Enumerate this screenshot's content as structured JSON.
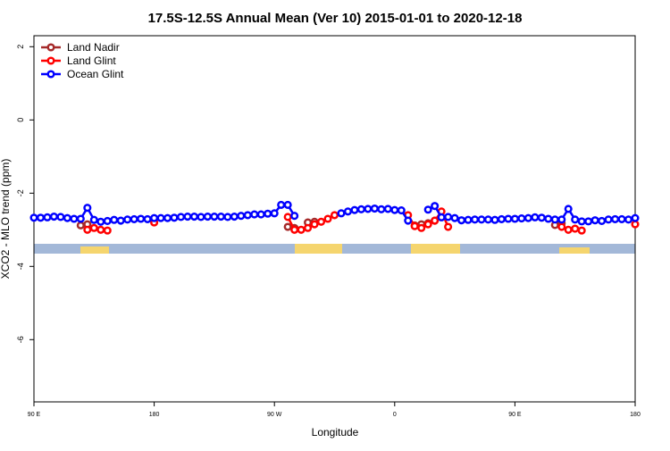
{
  "chart_data": {
    "type": "line",
    "title": "17.5S-12.5S Annual Mean (Ver 10)   2015-01-01 to 2020-12-18",
    "xlabel": "Longitude",
    "ylabel": "XCO2 - MLO trend (ppm)",
    "xlim": [
      90,
      540
    ],
    "ylim": [
      -7.7,
      2.3
    ],
    "xticks": [
      {
        "value": 90,
        "label": "90 E"
      },
      180,
      {
        "value": 270,
        "label": "90 W"
      },
      {
        "value": 360,
        "label": "0"
      },
      {
        "value": 450,
        "label": "90 E"
      },
      {
        "value": 540,
        "label": "180"
      }
    ],
    "yticks": [
      2,
      0,
      -2,
      -4,
      -6
    ],
    "legend": "top-left",
    "x": [
      90,
      95,
      100,
      105,
      110,
      115,
      120,
      125,
      130,
      135,
      140,
      145,
      150,
      155,
      160,
      165,
      170,
      175,
      180,
      185,
      190,
      195,
      200,
      205,
      210,
      215,
      220,
      225,
      230,
      235,
      240,
      245,
      250,
      255,
      260,
      265,
      270,
      275,
      280,
      285,
      290,
      295,
      300,
      305,
      310,
      315,
      320,
      325,
      330,
      335,
      340,
      345,
      350,
      355,
      360,
      365,
      370,
      375,
      380,
      385,
      390,
      395,
      400,
      405,
      410,
      415,
      420,
      425,
      430,
      435,
      440,
      445,
      450,
      455,
      460,
      465,
      470,
      475,
      480,
      485,
      490,
      495,
      500,
      505,
      510,
      515,
      520,
      525,
      530,
      535,
      540
    ],
    "series": [
      {
        "name": "Land Nadir",
        "color": "#a52a2a",
        "values": [
          null,
          null,
          null,
          null,
          null,
          null,
          null,
          -2.88,
          -2.85,
          null,
          null,
          null,
          null,
          null,
          null,
          null,
          null,
          null,
          null,
          null,
          null,
          null,
          null,
          null,
          null,
          null,
          null,
          null,
          null,
          null,
          null,
          null,
          null,
          null,
          null,
          null,
          null,
          null,
          -2.92,
          -2.95,
          null,
          -2.8,
          -2.78,
          null,
          null,
          null,
          null,
          null,
          null,
          null,
          null,
          null,
          null,
          null,
          null,
          null,
          null,
          -2.88,
          -2.85,
          -2.82,
          -2.75,
          null,
          null,
          null,
          null,
          null,
          null,
          null,
          null,
          null,
          null,
          null,
          null,
          null,
          null,
          null,
          null,
          null,
          -2.87,
          -2.82,
          null,
          null,
          null,
          null,
          null,
          null,
          null,
          null,
          null,
          null,
          null
        ]
      },
      {
        "name": "Land Glint",
        "color": "#ff0000",
        "values": [
          null,
          null,
          null,
          null,
          null,
          null,
          null,
          null,
          -3.0,
          -2.95,
          -3.0,
          -3.02,
          null,
          null,
          null,
          null,
          null,
          null,
          -2.8,
          null,
          null,
          null,
          null,
          null,
          null,
          null,
          null,
          null,
          null,
          null,
          null,
          null,
          null,
          null,
          null,
          null,
          null,
          null,
          -2.65,
          -3.0,
          -3.0,
          -2.95,
          -2.85,
          -2.78,
          -2.7,
          -2.6,
          null,
          null,
          null,
          null,
          null,
          null,
          null,
          null,
          null,
          null,
          -2.6,
          -2.9,
          -2.95,
          -2.85,
          -2.75,
          -2.5,
          -2.92,
          null,
          null,
          null,
          null,
          null,
          null,
          null,
          null,
          null,
          null,
          null,
          null,
          null,
          null,
          null,
          null,
          -2.92,
          -3.0,
          -2.97,
          -3.02,
          null,
          null,
          null,
          null,
          null,
          null,
          null,
          -2.85
        ]
      },
      {
        "name": "Ocean Glint",
        "color": "#0000ff",
        "values": [
          -2.67,
          -2.67,
          -2.66,
          -2.64,
          -2.65,
          -2.68,
          -2.7,
          -2.7,
          -2.4,
          -2.73,
          -2.78,
          -2.76,
          -2.73,
          -2.75,
          -2.72,
          -2.71,
          -2.7,
          -2.71,
          -2.68,
          -2.68,
          -2.68,
          -2.67,
          -2.65,
          -2.64,
          -2.64,
          -2.65,
          -2.64,
          -2.64,
          -2.64,
          -2.65,
          -2.64,
          -2.62,
          -2.6,
          -2.58,
          -2.58,
          -2.56,
          -2.55,
          -2.32,
          -2.32,
          -2.62,
          null,
          null,
          null,
          null,
          null,
          null,
          -2.55,
          -2.5,
          -2.46,
          -2.44,
          -2.43,
          -2.42,
          -2.44,
          -2.43,
          -2.46,
          -2.47,
          -2.75,
          null,
          null,
          -2.45,
          -2.35,
          -2.66,
          -2.65,
          -2.68,
          -2.74,
          -2.73,
          -2.72,
          -2.72,
          -2.72,
          -2.73,
          -2.71,
          -2.7,
          -2.7,
          -2.69,
          -2.68,
          -2.66,
          -2.67,
          -2.7,
          -2.72,
          -2.72,
          -2.43,
          -2.72,
          -2.77,
          -2.77,
          -2.74,
          -2.76,
          -2.72,
          -2.71,
          -2.71,
          -2.72,
          -2.68
        ]
      }
    ]
  }
}
